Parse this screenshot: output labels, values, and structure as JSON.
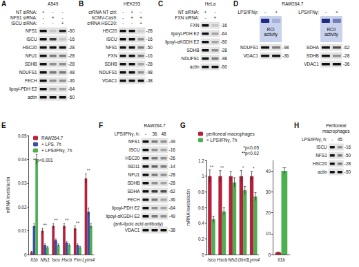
{
  "blots": [
    {
      "letter": "A",
      "title": "A549",
      "header": [
        {
          "label": "NT siRNA:",
          "marks": [
            "+",
            "-",
            "-"
          ]
        },
        {
          "label": "NFS1 siRNA:",
          "marks": [
            "-",
            "+",
            "-"
          ]
        },
        {
          "label": "ISCU siRNA:",
          "marks": [
            "-",
            "-",
            "+"
          ]
        }
      ],
      "rows": [
        {
          "label": "NFS1",
          "mw": "-50",
          "levels": [
            1,
            0.15,
            0.9
          ]
        },
        {
          "label": "ISCU",
          "mw": "-16",
          "levels": [
            1,
            0.8,
            0.15
          ]
        },
        {
          "label": "HSC20",
          "mw": "-28",
          "levels": [
            1,
            1,
            1
          ]
        },
        {
          "label": "NFU1",
          "mw": "-28",
          "levels": [
            1,
            0.5,
            0.5
          ]
        },
        {
          "label": "SDHB",
          "mw": "-28",
          "levels": [
            1,
            0.4,
            0.4
          ]
        },
        {
          "label": "NDUFS1",
          "mw": "-98",
          "levels": [
            1,
            0.5,
            0.5
          ]
        },
        {
          "label": "FECH",
          "mw": "-36",
          "levels": [
            1,
            0.4,
            0.4
          ]
        },
        {
          "label": "lipoyl-PDH E2",
          "mw": "-64",
          "levels": [
            1,
            0.3,
            0.3
          ]
        },
        {
          "label": "actin",
          "mw": "-50",
          "levels": [
            1,
            1,
            1
          ]
        }
      ]
    },
    {
      "letter": "B",
      "title": "HEK293",
      "header": [
        {
          "label": "crRNA NT ctrl:",
          "marks": [
            "-",
            "+",
            "-"
          ]
        },
        {
          "label": "hCMV-Cas9:",
          "marks": [
            "-",
            "+",
            "+"
          ]
        },
        {
          "label": "crRNA HSC20:",
          "marks": [
            "-",
            "-",
            "+"
          ]
        }
      ],
      "rows": [
        {
          "label": "HSC20",
          "mw": "-28",
          "levels": [
            1,
            1,
            0.1
          ]
        },
        {
          "label": "ISCU",
          "mw": "-16",
          "levels": [
            1,
            1,
            0.4
          ]
        },
        {
          "label": "NFS1",
          "mw": "-50",
          "levels": [
            1,
            1,
            0.5
          ]
        },
        {
          "label": "FXN",
          "mw": "-16",
          "levels": [
            1,
            1,
            0.5
          ]
        },
        {
          "label": "SDHB",
          "mw": "-28",
          "levels": [
            1,
            1,
            0.3
          ]
        },
        {
          "label": "NDUFS1",
          "mw": "-98",
          "levels": [
            1,
            1,
            0.4
          ]
        },
        {
          "label": "VDAC1",
          "mw": "-38",
          "levels": [
            1,
            1,
            1
          ]
        }
      ]
    },
    {
      "letter": "C",
      "title": "HeLa",
      "header": [
        {
          "label": "NT siRNA:",
          "marks": [
            "+",
            "-"
          ]
        },
        {
          "label": "FXN siRNA:",
          "marks": [
            "-",
            "+"
          ]
        }
      ],
      "rows": [
        {
          "label": "FXN",
          "mw": "-16",
          "levels": [
            1,
            0.15
          ]
        },
        {
          "label": "lipoyl-PDH E2",
          "mw": "-64",
          "levels": [
            1,
            0.3
          ]
        },
        {
          "label": "lipoyl-αKGDH E2",
          "mw": "-50",
          "levels": [
            1,
            0.3
          ]
        },
        {
          "label": "SDHB",
          "mw": "-28",
          "levels": [
            1,
            0.4
          ]
        },
        {
          "label": "NDUFS1",
          "mw": "-98",
          "levels": [
            1,
            0.5
          ]
        },
        {
          "label": "actin",
          "mw": "-50",
          "levels": [
            1,
            1
          ]
        }
      ]
    },
    {
      "letter": "D",
      "title": "RAW264.7",
      "subs": [
        {
          "header": [
            {
              "label": "LPS/IFNγ:",
              "marks": [
                "-",
                "+"
              ]
            }
          ],
          "rows": [
            {
              "label": "RCI activity",
              "kind": "gel",
              "levels": [
                1,
                0.2
              ]
            },
            {
              "label": "NDUFS1",
              "mw": "-98",
              "levels": [
                1,
                0.5
              ]
            },
            {
              "label": "VDAC1",
              "mw": "-36",
              "levels": [
                1,
                1
              ]
            }
          ]
        },
        {
          "header": [
            {
              "label": "LPS/IFNγ:",
              "marks": [
                "-",
                "+"
              ]
            }
          ],
          "rows": [
            {
              "label": "RCII activity",
              "kind": "gel",
              "levels": [
                1,
                0.5
              ]
            },
            {
              "label": "SDHA",
              "mw": "-62",
              "levels": [
                1,
                0.7
              ]
            },
            {
              "label": "SDHB",
              "mw": "-28",
              "levels": [
                1,
                0.4
              ]
            },
            {
              "label": "VDAC1",
              "mw": "-36",
              "levels": [
                1,
                1
              ]
            }
          ]
        }
      ]
    },
    {
      "letter": "F",
      "title": "RAW264.7",
      "header": [
        {
          "label": "LPS/IFNγ, h:",
          "marks": [
            "-",
            "36",
            "48"
          ]
        }
      ],
      "rows": [
        {
          "label": "NFS1",
          "mw": "-49",
          "levels": [
            1,
            0.5,
            0.4
          ]
        },
        {
          "label": "ISCU",
          "mw": "-16",
          "levels": [
            1,
            0.4,
            0.3
          ]
        },
        {
          "label": "HSC20",
          "mw": "-26",
          "levels": [
            1,
            0.5,
            0.4
          ]
        },
        {
          "label": "ISD11",
          "mw": "-14",
          "levels": [
            1,
            0.6,
            0.5
          ]
        },
        {
          "label": "NFU1",
          "mw": "-28",
          "levels": [
            1,
            0.5,
            0.4
          ]
        },
        {
          "label": "SDHB",
          "mw": "-28",
          "levels": [
            1,
            0.4,
            0.3
          ]
        },
        {
          "label": "SDHA",
          "mw": "-62",
          "levels": [
            1,
            0.8,
            0.7
          ]
        },
        {
          "label": "FECH",
          "mw": "-36",
          "levels": [
            1,
            0.5,
            0.3
          ]
        },
        {
          "label": "lipoyl-PDH E2",
          "mw": "-64",
          "levels": [
            1,
            0.4,
            0.3
          ]
        },
        {
          "label": "lipoyl-αKGDH E2",
          "mw": "-49",
          "levels": [
            1,
            0.5,
            0.4
          ],
          "note": "(anti-lipoic acid antibody)"
        },
        {
          "label": "VDAC1",
          "mw": "-38",
          "levels": [
            1,
            1,
            1
          ]
        }
      ]
    },
    {
      "letter": "H",
      "title": "Peritoneal macrophages",
      "header": [
        {
          "label": "LPS/IFNγ, h:",
          "marks": [
            "-",
            "45"
          ]
        }
      ],
      "rows": [
        {
          "label": "ISCU",
          "mw": "-16",
          "levels": [
            1,
            0.4
          ]
        },
        {
          "label": "NFS1",
          "mw": "-50",
          "levels": [
            1,
            0.5
          ]
        },
        {
          "label": "HSC20",
          "mw": "-28",
          "levels": [
            1,
            0.5
          ]
        },
        {
          "label": "actin",
          "mw": "-50",
          "levels": [
            1,
            1
          ]
        }
      ]
    }
  ],
  "chart_data": [
    {
      "panel": "E",
      "type": "bar",
      "y_label": "mRNA levels/actin",
      "categories": [
        "Il1b",
        "Nfs1",
        "Iscu",
        "Hscb",
        "Fxn",
        "Lyrm4"
      ],
      "series": [
        {
          "name": "RAW264.7",
          "color": "#b5203a",
          "values": [
            0.001,
            0.01,
            0.012,
            0.012,
            0.011,
            0.032
          ],
          "errors": [
            0.0003,
            0.001,
            0.001,
            0.001,
            0.001,
            0.002
          ]
        },
        {
          "name": "+ LPS, 7h",
          "color": "#3b4ea0",
          "values": [
            0.012,
            0.004,
            0.006,
            0.005,
            0.004,
            0.018
          ],
          "errors": [
            0.001,
            0.0005,
            0.0006,
            0.0005,
            0.0005,
            0.0015
          ]
        },
        {
          "name": "+ LPS/IFNγ, 7h",
          "color": "#4caf50",
          "values": [
            0.04,
            0.003,
            0.004,
            0.004,
            0.003,
            0.012
          ],
          "errors": [
            0.002,
            0.0004,
            0.0005,
            0.0005,
            0.0004,
            0.001
          ]
        }
      ],
      "significance": [
        "**",
        "**",
        "**",
        "**",
        "**",
        "**"
      ],
      "notes": [
        "**p<0.001"
      ],
      "ylim": [
        0,
        0.05
      ],
      "yticks": [
        0,
        0.01,
        0.02,
        0.03,
        0.04,
        0.05
      ],
      "legend": "top"
    },
    {
      "panel": "G",
      "type": "bar",
      "y_label": "mRNA levels/actin",
      "categories": [
        "Iscu",
        "Hscb",
        "Nfs1",
        "Glrx5",
        "Lyrm4"
      ],
      "series": [
        {
          "name": "peritoneal macrophages",
          "color": "#b5203a",
          "values": [
            1,
            1,
            1,
            1,
            1
          ],
          "errors": [
            0.08,
            0.07,
            0.06,
            0.07,
            0.06
          ]
        },
        {
          "name": "+ LPS/IFNγ, 7h",
          "color": "#4caf50",
          "values": [
            0.45,
            0.55,
            0.92,
            0.82,
            0.74
          ],
          "errors": [
            0.04,
            0.05,
            0.06,
            0.05,
            0.05
          ]
        }
      ],
      "significance": [
        "**",
        "**",
        null,
        "*",
        "*"
      ],
      "notes": [
        "*p<0.05",
        "**p<0.02"
      ],
      "ylim": [
        0,
        1.2
      ],
      "yticks": [
        0,
        0.2,
        0.4,
        0.6,
        0.8,
        1,
        1.2
      ],
      "legend": "top-left"
    },
    {
      "panel": "G",
      "type": "bar",
      "categories": [
        "Il1b"
      ],
      "series": [
        {
          "color": "#b5203a",
          "values": [
            1
          ],
          "errors": [
            0.2
          ]
        },
        {
          "color": "#4caf50",
          "values": [
            40
          ],
          "errors": [
            1.5
          ]
        }
      ],
      "ylim": [
        0,
        45
      ],
      "yticks": [
        0,
        10,
        20,
        30,
        40
      ]
    }
  ]
}
